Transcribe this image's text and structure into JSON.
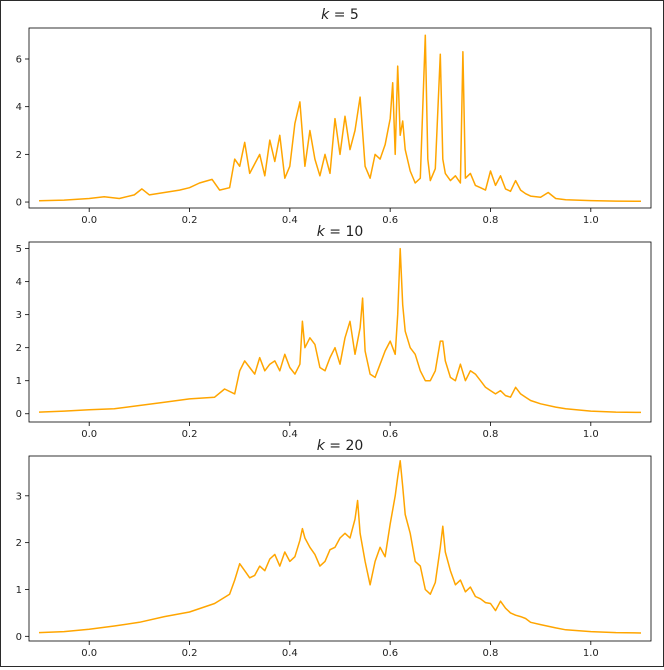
{
  "chart_data": [
    {
      "type": "line",
      "title": "k = 5",
      "xlabel": "",
      "ylabel": "",
      "xlim": [
        -0.12,
        1.12
      ],
      "ylim": [
        -0.25,
        7.3
      ],
      "xticks": [
        0.0,
        0.2,
        0.4,
        0.6,
        0.8,
        1.0
      ],
      "xtick_labels": [
        "0.0",
        "0.2",
        "0.4",
        "0.6",
        "0.8",
        "1.0"
      ],
      "yticks": [
        0,
        2,
        4,
        6
      ],
      "ytick_labels": [
        "0",
        "2",
        "4",
        "6"
      ],
      "grid": false,
      "line_color": "#FFA500",
      "series": [
        {
          "x": [
            -0.1,
            -0.05,
            0.0,
            0.03,
            0.06,
            0.09,
            0.105,
            0.12,
            0.15,
            0.18,
            0.2,
            0.22,
            0.245,
            0.26,
            0.28,
            0.29,
            0.3,
            0.31,
            0.32,
            0.33,
            0.34,
            0.35,
            0.36,
            0.37,
            0.38,
            0.39,
            0.4,
            0.41,
            0.42,
            0.43,
            0.44,
            0.45,
            0.46,
            0.47,
            0.48,
            0.49,
            0.5,
            0.51,
            0.52,
            0.53,
            0.54,
            0.55,
            0.56,
            0.57,
            0.58,
            0.59,
            0.6,
            0.605,
            0.61,
            0.615,
            0.62,
            0.625,
            0.63,
            0.64,
            0.65,
            0.66,
            0.67,
            0.675,
            0.68,
            0.69,
            0.7,
            0.705,
            0.71,
            0.72,
            0.73,
            0.74,
            0.745,
            0.75,
            0.76,
            0.77,
            0.78,
            0.79,
            0.8,
            0.81,
            0.82,
            0.83,
            0.84,
            0.85,
            0.86,
            0.87,
            0.88,
            0.9,
            0.915,
            0.93,
            0.95,
            1.0,
            1.05,
            1.1
          ],
          "y": [
            0.05,
            0.08,
            0.15,
            0.22,
            0.15,
            0.3,
            0.55,
            0.3,
            0.4,
            0.5,
            0.6,
            0.8,
            0.95,
            0.5,
            0.6,
            1.8,
            1.5,
            2.5,
            1.2,
            1.6,
            2.0,
            1.1,
            2.6,
            1.7,
            2.8,
            1.0,
            1.5,
            3.3,
            4.2,
            1.5,
            3.0,
            1.8,
            1.1,
            2.0,
            1.2,
            3.5,
            2.0,
            3.6,
            2.2,
            3.0,
            4.4,
            1.5,
            1.0,
            2.0,
            1.8,
            2.4,
            3.5,
            5.0,
            2.0,
            5.7,
            2.8,
            3.4,
            2.2,
            1.3,
            0.8,
            1.0,
            7.0,
            1.8,
            0.9,
            1.4,
            6.2,
            1.8,
            1.2,
            0.9,
            1.1,
            0.8,
            6.3,
            1.0,
            1.2,
            0.7,
            0.6,
            0.5,
            1.3,
            0.7,
            1.1,
            0.55,
            0.45,
            0.9,
            0.5,
            0.35,
            0.25,
            0.2,
            0.4,
            0.15,
            0.1,
            0.06,
            0.04,
            0.03
          ]
        }
      ]
    },
    {
      "type": "line",
      "title": "k = 10",
      "xlabel": "",
      "ylabel": "",
      "xlim": [
        -0.12,
        1.12
      ],
      "ylim": [
        -0.25,
        5.2
      ],
      "xticks": [
        0.0,
        0.2,
        0.4,
        0.6,
        0.8,
        1.0
      ],
      "xtick_labels": [
        "0.0",
        "0.2",
        "0.4",
        "0.6",
        "0.8",
        "1.0"
      ],
      "yticks": [
        0,
        1,
        2,
        3,
        4,
        5
      ],
      "ytick_labels": [
        "0",
        "1",
        "2",
        "3",
        "4",
        "5"
      ],
      "grid": false,
      "line_color": "#FFA500",
      "series": [
        {
          "x": [
            -0.1,
            -0.05,
            0.0,
            0.05,
            0.1,
            0.15,
            0.2,
            0.25,
            0.27,
            0.29,
            0.3,
            0.31,
            0.32,
            0.33,
            0.34,
            0.35,
            0.36,
            0.37,
            0.38,
            0.39,
            0.4,
            0.41,
            0.42,
            0.425,
            0.43,
            0.44,
            0.45,
            0.46,
            0.47,
            0.48,
            0.49,
            0.5,
            0.51,
            0.52,
            0.53,
            0.54,
            0.545,
            0.55,
            0.56,
            0.57,
            0.58,
            0.59,
            0.6,
            0.61,
            0.615,
            0.62,
            0.625,
            0.63,
            0.64,
            0.65,
            0.66,
            0.67,
            0.68,
            0.69,
            0.7,
            0.705,
            0.71,
            0.72,
            0.73,
            0.74,
            0.75,
            0.76,
            0.77,
            0.78,
            0.79,
            0.8,
            0.81,
            0.82,
            0.83,
            0.84,
            0.85,
            0.86,
            0.87,
            0.88,
            0.9,
            0.93,
            0.95,
            1.0,
            1.05,
            1.1
          ],
          "y": [
            0.05,
            0.08,
            0.12,
            0.15,
            0.25,
            0.35,
            0.45,
            0.5,
            0.75,
            0.6,
            1.3,
            1.6,
            1.4,
            1.2,
            1.7,
            1.3,
            1.5,
            1.6,
            1.3,
            1.8,
            1.4,
            1.2,
            1.5,
            2.8,
            2.0,
            2.3,
            2.1,
            1.4,
            1.3,
            1.7,
            2.0,
            1.5,
            2.3,
            2.8,
            1.8,
            2.6,
            3.5,
            1.9,
            1.2,
            1.1,
            1.5,
            1.9,
            2.2,
            1.8,
            3.0,
            5.0,
            3.3,
            2.5,
            2.0,
            1.8,
            1.3,
            1.0,
            1.0,
            1.3,
            2.2,
            2.2,
            1.6,
            1.1,
            1.0,
            1.5,
            1.0,
            1.3,
            1.2,
            1.0,
            0.8,
            0.7,
            0.6,
            0.7,
            0.55,
            0.5,
            0.8,
            0.6,
            0.5,
            0.4,
            0.3,
            0.2,
            0.15,
            0.08,
            0.05,
            0.04
          ]
        }
      ]
    },
    {
      "type": "line",
      "title": "k = 20",
      "xlabel": "",
      "ylabel": "",
      "xlim": [
        -0.12,
        1.12
      ],
      "ylim": [
        -0.1,
        3.85
      ],
      "xticks": [
        0.0,
        0.2,
        0.4,
        0.6,
        0.8,
        1.0
      ],
      "xtick_labels": [
        "0.0",
        "0.2",
        "0.4",
        "0.6",
        "0.8",
        "1.0"
      ],
      "yticks": [
        0,
        1,
        2,
        3
      ],
      "ytick_labels": [
        "0",
        "1",
        "2",
        "3"
      ],
      "grid": false,
      "line_color": "#FFA500",
      "series": [
        {
          "x": [
            -0.1,
            -0.05,
            0.0,
            0.05,
            0.1,
            0.15,
            0.2,
            0.25,
            0.28,
            0.29,
            0.3,
            0.31,
            0.32,
            0.33,
            0.34,
            0.35,
            0.36,
            0.37,
            0.38,
            0.39,
            0.4,
            0.41,
            0.42,
            0.425,
            0.43,
            0.44,
            0.45,
            0.46,
            0.47,
            0.48,
            0.49,
            0.5,
            0.51,
            0.52,
            0.53,
            0.535,
            0.54,
            0.55,
            0.56,
            0.57,
            0.58,
            0.59,
            0.6,
            0.61,
            0.615,
            0.62,
            0.625,
            0.63,
            0.64,
            0.65,
            0.66,
            0.67,
            0.68,
            0.69,
            0.7,
            0.705,
            0.71,
            0.72,
            0.73,
            0.74,
            0.75,
            0.76,
            0.77,
            0.78,
            0.79,
            0.8,
            0.81,
            0.82,
            0.83,
            0.84,
            0.85,
            0.86,
            0.87,
            0.88,
            0.9,
            0.93,
            0.95,
            1.0,
            1.05,
            1.1
          ],
          "y": [
            0.08,
            0.1,
            0.15,
            0.22,
            0.3,
            0.42,
            0.52,
            0.7,
            0.9,
            1.2,
            1.55,
            1.4,
            1.25,
            1.3,
            1.5,
            1.4,
            1.65,
            1.75,
            1.5,
            1.8,
            1.6,
            1.7,
            2.05,
            2.3,
            2.1,
            1.9,
            1.75,
            1.5,
            1.6,
            1.85,
            1.9,
            2.1,
            2.2,
            2.1,
            2.5,
            2.9,
            2.2,
            1.6,
            1.1,
            1.6,
            1.9,
            1.7,
            2.4,
            3.0,
            3.4,
            3.75,
            3.2,
            2.6,
            2.2,
            1.6,
            1.5,
            1.0,
            0.9,
            1.15,
            1.9,
            2.35,
            1.8,
            1.4,
            1.1,
            1.2,
            0.95,
            1.05,
            0.85,
            0.8,
            0.72,
            0.7,
            0.55,
            0.75,
            0.6,
            0.5,
            0.45,
            0.42,
            0.38,
            0.3,
            0.25,
            0.18,
            0.14,
            0.1,
            0.08,
            0.07
          ]
        }
      ]
    }
  ]
}
